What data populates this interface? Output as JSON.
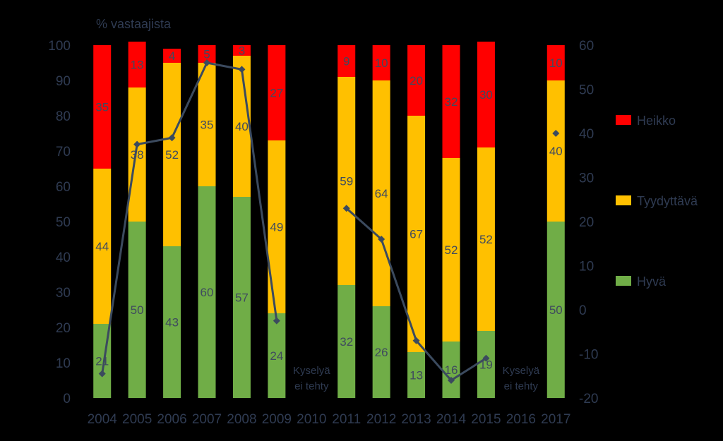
{
  "chart_data": {
    "type": "bar",
    "ylabel": "% vastaajista",
    "ylim": [
      0,
      100
    ],
    "y_ticks": [
      "0",
      "10",
      "20",
      "30",
      "40",
      "50",
      "60",
      "70",
      "80",
      "90",
      "100"
    ],
    "y2lim": [
      -20,
      60
    ],
    "y2_ticks": [
      "-20",
      "-10",
      "0",
      "10",
      "20",
      "30",
      "40",
      "50",
      "60"
    ],
    "categories": [
      "2004",
      "2005",
      "2006",
      "2007",
      "2008",
      "2009",
      "2010",
      "2011",
      "2012",
      "2013",
      "2014",
      "2015",
      "2016",
      "2017"
    ],
    "series": [
      {
        "name": "Hyvä",
        "color": "#70ad47",
        "values": [
          21,
          50,
          43,
          60,
          57,
          24,
          null,
          32,
          26,
          13,
          16,
          19,
          null,
          50
        ]
      },
      {
        "name": "Tyydyttävä",
        "color": "#ffc000",
        "values": [
          44,
          38,
          52,
          35,
          40,
          49,
          null,
          59,
          64,
          67,
          52,
          52,
          null,
          40
        ]
      },
      {
        "name": "Heikko",
        "color": "#ff0000",
        "values": [
          35,
          13,
          4,
          5,
          3,
          27,
          null,
          9,
          10,
          20,
          32,
          30,
          null,
          10
        ]
      }
    ],
    "line": {
      "color": "#3b4a5e",
      "axis": "right",
      "values": [
        -14.5,
        37.5,
        39,
        56,
        54.5,
        -2.5,
        null,
        23,
        16,
        -7,
        -16,
        -11,
        null,
        40
      ]
    },
    "annotations": [
      {
        "category": "2010",
        "text": [
          "Kyselyä",
          "ei tehty"
        ]
      },
      {
        "category": "2016",
        "text": [
          "Kyselyä",
          "ei tehty"
        ]
      }
    ],
    "legend_order": [
      "Heikko",
      "Tyydyttävä",
      "Hyvä"
    ],
    "legend_position": "right",
    "grid": false
  }
}
